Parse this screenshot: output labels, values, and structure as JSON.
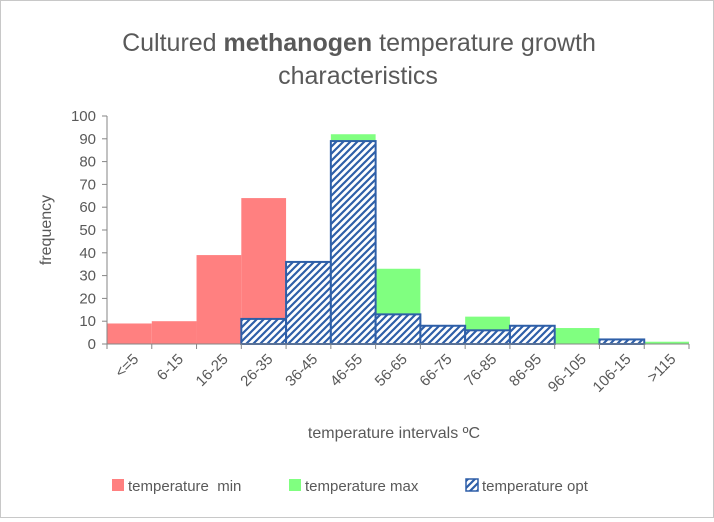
{
  "chart_data": {
    "type": "bar",
    "title": {
      "line1_prefix": "Cultured ",
      "line1_bold": "methanogen",
      "line1_suffix": " temperature growth",
      "line2": "characteristics"
    },
    "xlabel": "temperature intervals ºC",
    "ylabel": "frequency",
    "ylim": [
      0,
      100
    ],
    "yticks": [
      0,
      10,
      20,
      30,
      40,
      50,
      60,
      70,
      80,
      90,
      100
    ],
    "grid": false,
    "legend_position": "bottom",
    "categories": [
      "<=5",
      "6-15",
      "16-25",
      "26-35",
      "36-45",
      "46-55",
      "56-65",
      "66-75",
      "76-85",
      "86-95",
      "96-105",
      "106-15",
      ">115"
    ],
    "series": [
      {
        "name": "temperature  min",
        "color": "#ff8080",
        "fill": "solid",
        "values": [
          9,
          10,
          39,
          64,
          0,
          0,
          0,
          0,
          0,
          0,
          0,
          0,
          0
        ]
      },
      {
        "name": "temperature max",
        "color": "#80ff80",
        "fill": "solid",
        "values": [
          0,
          0,
          0,
          0,
          0,
          92,
          33,
          0,
          12,
          0,
          7,
          0,
          1
        ]
      },
      {
        "name": "temperature opt",
        "color": "#2e5fa8",
        "fill": "hatched",
        "values": [
          0,
          0,
          0,
          11,
          36,
          89,
          13,
          8,
          6,
          8,
          0,
          2,
          0
        ]
      }
    ]
  }
}
